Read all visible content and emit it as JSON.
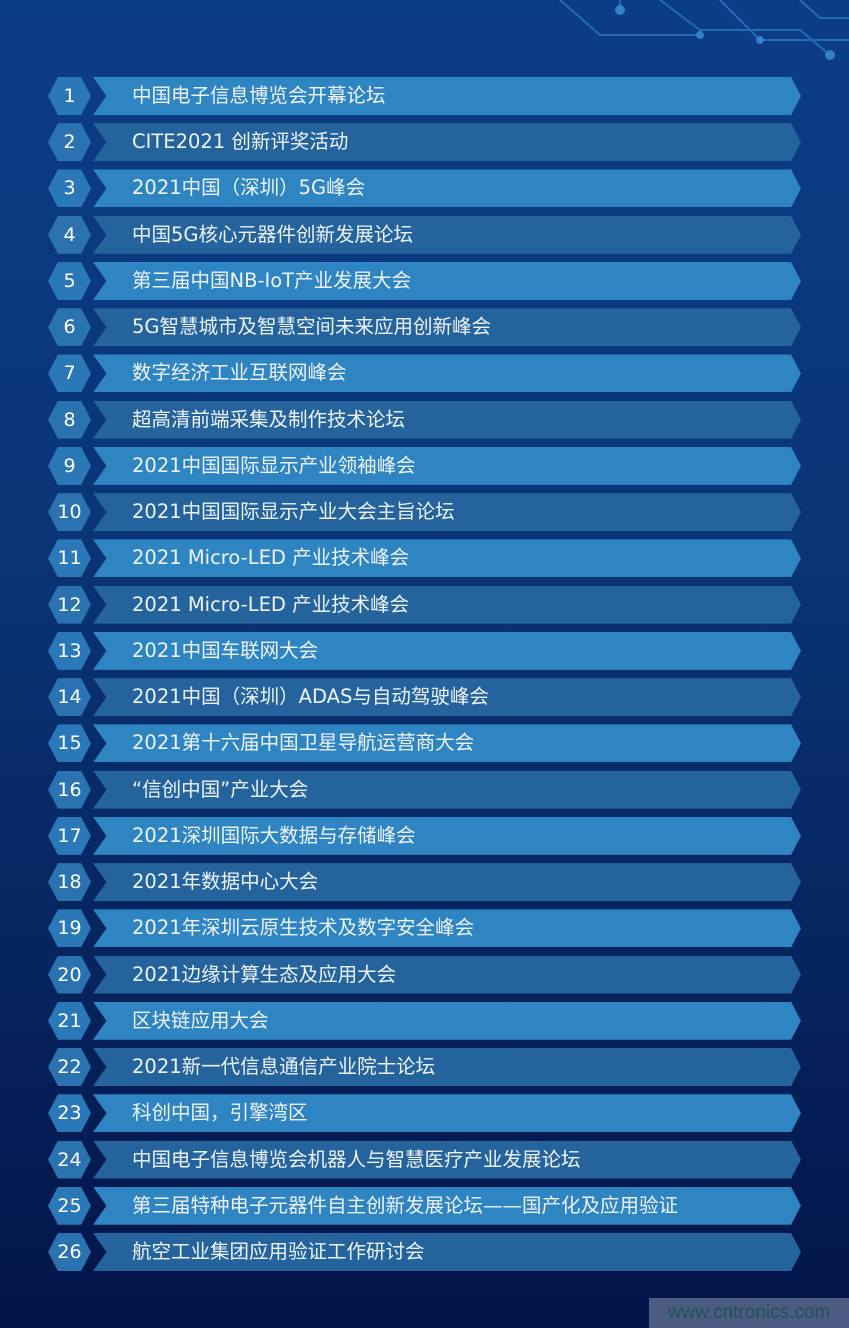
{
  "colors": {
    "bar_light": "#2f84c2",
    "bar_dark": "#24639c",
    "badge": "#2a78b8",
    "background_top": "#0b3d86",
    "background_bottom": "#021448"
  },
  "items": [
    {
      "num": "1",
      "title": "中国电子信息博览会开幕论坛"
    },
    {
      "num": "2",
      "title": "CITE2021 创新评奖活动"
    },
    {
      "num": "3",
      "title": "2021中国（深圳）5G峰会"
    },
    {
      "num": "4",
      "title": "中国5G核心元器件创新发展论坛"
    },
    {
      "num": "5",
      "title": "第三届中国NB-IoT产业发展大会"
    },
    {
      "num": "6",
      "title": "5G智慧城市及智慧空间未来应用创新峰会"
    },
    {
      "num": "7",
      "title": "数字经济工业互联网峰会"
    },
    {
      "num": "8",
      "title": "超高清前端采集及制作技术论坛"
    },
    {
      "num": "9",
      "title": "2021中国国际显示产业领袖峰会"
    },
    {
      "num": "10",
      "title": "2021中国国际显示产业大会主旨论坛"
    },
    {
      "num": "11",
      "title": "2021 Micro-LED 产业技术峰会"
    },
    {
      "num": "12",
      "title": "2021 Micro-LED 产业技术峰会"
    },
    {
      "num": "13",
      "title": "2021中国车联网大会"
    },
    {
      "num": "14",
      "title": "2021中国（深圳）ADAS与自动驾驶峰会"
    },
    {
      "num": "15",
      "title": "2021第十六届中国卫星导航运营商大会"
    },
    {
      "num": "16",
      "title": "“信创中国”产业大会"
    },
    {
      "num": "17",
      "title": "2021深圳国际大数据与存储峰会"
    },
    {
      "num": "18",
      "title": "2021年数据中心大会"
    },
    {
      "num": "19",
      "title": "2021年深圳云原生技术及数字安全峰会"
    },
    {
      "num": "20",
      "title": "2021边缘计算生态及应用大会"
    },
    {
      "num": "21",
      "title": "区块链应用大会"
    },
    {
      "num": "22",
      "title": "2021新一代信息通信产业院士论坛"
    },
    {
      "num": "23",
      "title": "科创中国，引擎湾区"
    },
    {
      "num": "24",
      "title": "中国电子信息博览会机器人与智慧医疗产业发展论坛"
    },
    {
      "num": "25",
      "title": "第三届特种电子元器件自主创新发展论坛——国产化及应用验证"
    },
    {
      "num": "26",
      "title": "航空工业集团应用验证工作研讨会"
    }
  ],
  "watermark": "www.cntronics.com"
}
